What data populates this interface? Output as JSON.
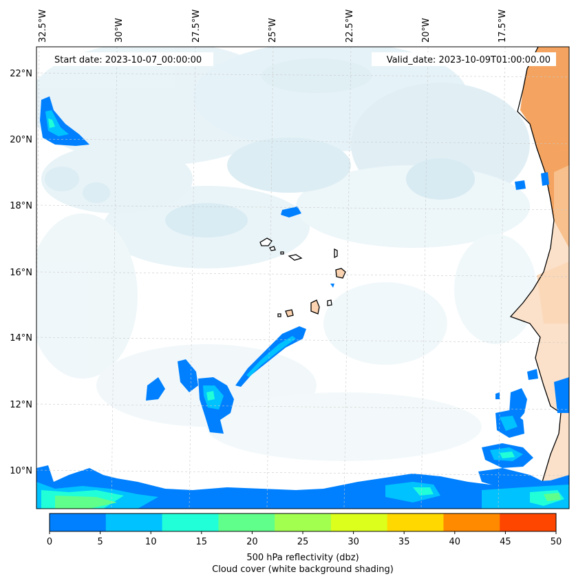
{
  "map": {
    "start_label": "Start date: 2023-10-07_00:00:00",
    "valid_label": "Valid_date: 2023-10-09T01:00:00.00",
    "lon_labels": [
      "32.5°W",
      "30°W",
      "27.5°W",
      "25°W",
      "22.5°W",
      "20°W",
      "17.5°W"
    ],
    "lat_labels": [
      "22°N",
      "20°N",
      "18°N",
      "16°N",
      "14°N",
      "12°N",
      "10°N"
    ]
  },
  "colorbar": {
    "ticks": [
      "0",
      "5",
      "10",
      "15",
      "20",
      "25",
      "30",
      "35",
      "40",
      "45",
      "50"
    ],
    "colors": [
      "#0080ff",
      "#00c2ff",
      "#20ffd8",
      "#60ff8c",
      "#a2ff50",
      "#dcff1c",
      "#ffd800",
      "#ff8a00",
      "#ff4600"
    ],
    "title": "500 hPa reflectivity (dbz)",
    "subtitle": "Cloud cover (white background shading)"
  },
  "colors": {
    "cloud_light": "#e8f4f8",
    "cloud_mid": "#cfe7ef",
    "land_hot": "#f4a460",
    "land_warm": "#fbd3b0",
    "coast": "#000000",
    "grid": "#c8c8c8"
  }
}
